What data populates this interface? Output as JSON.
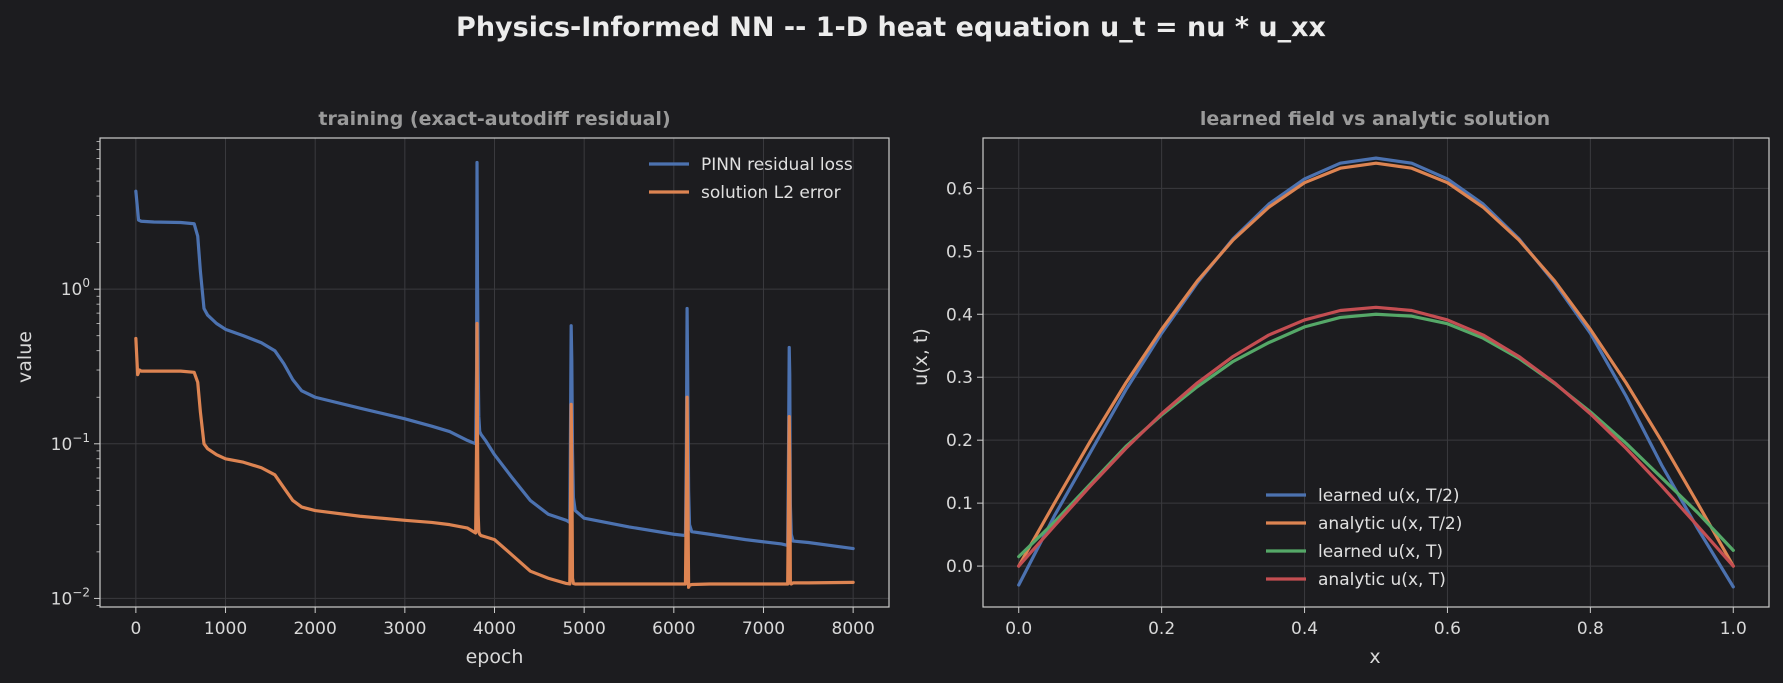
{
  "figure": {
    "title": "Physics-Informed NN -- 1-D heat equation  u_t = nu * u_xx",
    "background": "#1c1c1f",
    "axes_facecolor": "#1c1c1f",
    "spine_color": "#cccccc",
    "grid_color": "#3a3a3e"
  },
  "chart_data": [
    {
      "type": "line",
      "title": "training (exact-autodiff residual)",
      "xlabel": "epoch",
      "ylabel": "value",
      "xlim": [
        -400,
        8400
      ],
      "ylim": [
        0.0088,
        9.5
      ],
      "yscale": "log",
      "grid": true,
      "legend_position": "upper-right",
      "x_ticks": [
        0,
        1000,
        2000,
        3000,
        4000,
        5000,
        6000,
        7000,
        8000
      ],
      "x_tick_labels": [
        "0",
        "1000",
        "2000",
        "3000",
        "4000",
        "5000",
        "6000",
        "7000",
        "8000"
      ],
      "y_ticks": [
        0.01,
        0.1,
        1
      ],
      "y_tick_labels": [
        {
          "base": "10",
          "exp": "−2"
        },
        {
          "base": "10",
          "exp": "−1"
        },
        {
          "base": "10",
          "exp": "0"
        }
      ],
      "series": [
        {
          "name": "PINN residual loss",
          "color": "#4c72b0",
          "x": [
            0,
            30,
            60,
            200,
            500,
            650,
            690,
            720,
            760,
            800,
            900,
            1000,
            1200,
            1400,
            1550,
            1650,
            1750,
            1850,
            2000,
            2500,
            3000,
            3300,
            3500,
            3700,
            3790,
            3800,
            3805,
            3810,
            3818,
            3825,
            3835,
            3850,
            3900,
            4000,
            4200,
            4400,
            4600,
            4800,
            4840,
            4850,
            4855,
            4862,
            4870,
            4880,
            4900,
            5000,
            5500,
            6000,
            6130,
            6140,
            6148,
            6155,
            6165,
            6175,
            6200,
            6400,
            6800,
            7200,
            7270,
            7280,
            7287,
            7293,
            7300,
            7310,
            7330,
            7500,
            8000
          ],
          "y": [
            4.3,
            2.8,
            2.75,
            2.72,
            2.7,
            2.65,
            2.2,
            1.3,
            0.75,
            0.68,
            0.6,
            0.55,
            0.5,
            0.45,
            0.4,
            0.33,
            0.26,
            0.22,
            0.2,
            0.17,
            0.145,
            0.13,
            0.12,
            0.105,
            0.1,
            0.3,
            6.6,
            1.2,
            0.3,
            0.15,
            0.12,
            0.115,
            0.105,
            0.085,
            0.06,
            0.043,
            0.035,
            0.032,
            0.031,
            0.2,
            0.58,
            0.35,
            0.09,
            0.045,
            0.037,
            0.033,
            0.029,
            0.026,
            0.0255,
            0.1,
            0.75,
            0.25,
            0.05,
            0.03,
            0.027,
            0.026,
            0.024,
            0.0225,
            0.022,
            0.1,
            0.42,
            0.28,
            0.04,
            0.026,
            0.0235,
            0.023,
            0.021
          ]
        },
        {
          "name": "solution L2 error",
          "color": "#dd8452",
          "x": [
            0,
            20,
            40,
            60,
            200,
            500,
            650,
            690,
            720,
            760,
            800,
            900,
            1000,
            1200,
            1400,
            1550,
            1650,
            1750,
            1850,
            2000,
            2500,
            3000,
            3300,
            3500,
            3700,
            3790,
            3800,
            3805,
            3810,
            3818,
            3825,
            3835,
            3850,
            3900,
            4000,
            4200,
            4400,
            4600,
            4800,
            4840,
            4850,
            4855,
            4862,
            4870,
            4880,
            4900,
            5000,
            5500,
            6000,
            6130,
            6140,
            6148,
            6155,
            6165,
            6175,
            6200,
            6400,
            6800,
            7200,
            7270,
            7280,
            7287,
            7293,
            7300,
            7310,
            7330,
            7500,
            8000
          ],
          "y": [
            0.48,
            0.28,
            0.3,
            0.295,
            0.295,
            0.295,
            0.29,
            0.25,
            0.16,
            0.1,
            0.093,
            0.085,
            0.08,
            0.076,
            0.07,
            0.063,
            0.052,
            0.043,
            0.039,
            0.037,
            0.034,
            0.032,
            0.031,
            0.03,
            0.0285,
            0.0265,
            0.1,
            0.6,
            0.12,
            0.035,
            0.027,
            0.026,
            0.0255,
            0.025,
            0.024,
            0.019,
            0.015,
            0.0135,
            0.0125,
            0.0124,
            0.06,
            0.18,
            0.08,
            0.0135,
            0.0125,
            0.0124,
            0.0124,
            0.0124,
            0.0124,
            0.0124,
            0.05,
            0.2,
            0.06,
            0.0118,
            0.0122,
            0.0123,
            0.0124,
            0.0124,
            0.0124,
            0.0124,
            0.05,
            0.15,
            0.08,
            0.0125,
            0.0124,
            0.0126,
            0.0126,
            0.0127
          ]
        }
      ]
    },
    {
      "type": "line",
      "title": "learned field vs analytic solution",
      "xlabel": "x",
      "ylabel": "u(x, t)",
      "xlim": [
        -0.05,
        1.05
      ],
      "ylim": [
        -0.065,
        0.68
      ],
      "grid": true,
      "legend_position": "lower-center",
      "x_ticks": [
        0,
        0.2,
        0.4,
        0.6,
        0.8,
        1.0
      ],
      "x_tick_labels": [
        "0.0",
        "0.2",
        "0.4",
        "0.6",
        "0.8",
        "1.0"
      ],
      "y_ticks": [
        0,
        0.1,
        0.2,
        0.3,
        0.4,
        0.5,
        0.6
      ],
      "y_tick_labels": [
        "0.0",
        "0.1",
        "0.2",
        "0.3",
        "0.4",
        "0.5",
        "0.6"
      ],
      "series": [
        {
          "name": "learned u(x, T/2)",
          "color": "#4c72b0",
          "x": [
            0,
            0.05,
            0.1,
            0.15,
            0.2,
            0.25,
            0.3,
            0.35,
            0.4,
            0.45,
            0.5,
            0.55,
            0.6,
            0.65,
            0.7,
            0.75,
            0.8,
            0.85,
            0.9,
            0.95,
            1.0
          ],
          "y": [
            -0.03,
            0.08,
            0.18,
            0.28,
            0.37,
            0.45,
            0.52,
            0.575,
            0.615,
            0.64,
            0.648,
            0.64,
            0.615,
            0.575,
            0.52,
            0.45,
            0.37,
            0.27,
            0.16,
            0.06,
            -0.033
          ]
        },
        {
          "name": "analytic u(x, T/2)",
          "color": "#dd8452",
          "x": [
            0,
            0.05,
            0.1,
            0.15,
            0.2,
            0.25,
            0.3,
            0.35,
            0.4,
            0.45,
            0.5,
            0.55,
            0.6,
            0.65,
            0.7,
            0.75,
            0.8,
            0.85,
            0.9,
            0.95,
            1.0
          ],
          "y": [
            0.0,
            0.1,
            0.198,
            0.291,
            0.376,
            0.453,
            0.518,
            0.57,
            0.609,
            0.632,
            0.64,
            0.632,
            0.609,
            0.57,
            0.518,
            0.453,
            0.376,
            0.291,
            0.198,
            0.1,
            0.0
          ]
        },
        {
          "name": "learned u(x, T)",
          "color": "#55a868",
          "x": [
            0,
            0.05,
            0.1,
            0.15,
            0.2,
            0.25,
            0.3,
            0.35,
            0.4,
            0.45,
            0.5,
            0.55,
            0.6,
            0.65,
            0.7,
            0.75,
            0.8,
            0.85,
            0.9,
            0.95,
            1.0
          ],
          "y": [
            0.015,
            0.07,
            0.13,
            0.19,
            0.24,
            0.285,
            0.325,
            0.355,
            0.38,
            0.395,
            0.4,
            0.397,
            0.385,
            0.362,
            0.33,
            0.29,
            0.245,
            0.195,
            0.14,
            0.085,
            0.025
          ]
        },
        {
          "name": "analytic u(x, T)",
          "color": "#c44e52",
          "x": [
            0,
            0.05,
            0.1,
            0.15,
            0.2,
            0.25,
            0.3,
            0.35,
            0.4,
            0.45,
            0.5,
            0.55,
            0.6,
            0.65,
            0.7,
            0.75,
            0.8,
            0.85,
            0.9,
            0.95,
            1.0
          ],
          "y": [
            0.0,
            0.064,
            0.127,
            0.187,
            0.242,
            0.291,
            0.333,
            0.367,
            0.391,
            0.406,
            0.411,
            0.406,
            0.391,
            0.367,
            0.333,
            0.291,
            0.242,
            0.187,
            0.127,
            0.064,
            0.0
          ]
        }
      ]
    }
  ]
}
